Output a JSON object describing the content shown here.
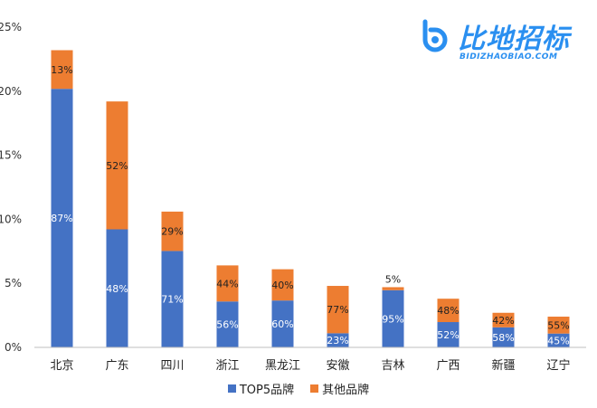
{
  "chart_data": {
    "type": "bar",
    "stacked": true,
    "categories": [
      "北京",
      "广东",
      "四川",
      "浙江",
      "黑龙江",
      "安徽",
      "吉林",
      "广西",
      "新疆",
      "辽宁"
    ],
    "totals": [
      23.2,
      19.2,
      10.6,
      6.4,
      6.1,
      4.8,
      4.7,
      3.8,
      2.7,
      2.4
    ],
    "series": [
      {
        "name": "TOP5品牌",
        "color": "#4472c4",
        "labels": [
          "87%",
          "48%",
          "71%",
          "56%",
          "60%",
          "23%",
          "95%",
          "52%",
          "58%",
          "45%"
        ],
        "shares": [
          0.87,
          0.48,
          0.71,
          0.56,
          0.6,
          0.23,
          0.95,
          0.52,
          0.58,
          0.45
        ]
      },
      {
        "name": "其他品牌",
        "color": "#ed7d31",
        "labels": [
          "13%",
          "52%",
          "29%",
          "44%",
          "40%",
          "77%",
          "5%",
          "48%",
          "42%",
          "55%"
        ],
        "shares": [
          0.13,
          0.52,
          0.29,
          0.44,
          0.4,
          0.77,
          0.05,
          0.48,
          0.42,
          0.55
        ]
      }
    ],
    "yticks": [
      "0%",
      "5%",
      "10%",
      "15%",
      "20%",
      "25%"
    ],
    "ylim": [
      0,
      25
    ],
    "legend_position": "bottom"
  },
  "logo": {
    "text": "比地招标",
    "subtext": "BIDIZHAOBIAO.COM",
    "color": "#2a8ff0"
  }
}
